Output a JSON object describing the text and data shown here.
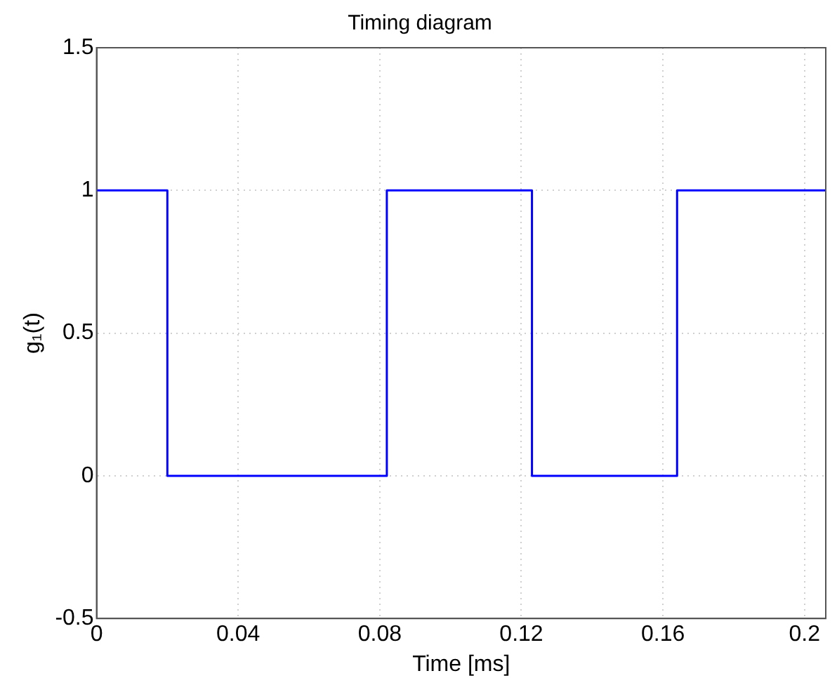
{
  "chart_data": {
    "type": "step",
    "title": "Timing diagram",
    "xlabel": "Time [ms]",
    "ylabel": "g₁(t)",
    "x": [
      0,
      0.02,
      0.082,
      0.123,
      0.164,
      0.206
    ],
    "series": [
      {
        "color": "#0000ff",
        "values": [
          1,
          0,
          1,
          0,
          1,
          1
        ]
      }
    ],
    "xlim": [
      0,
      0.206
    ],
    "xticks": [
      0,
      0.04,
      0.08,
      0.12,
      0.16,
      0.2
    ],
    "ylim": [
      -0.5,
      1.5
    ],
    "yticks": [
      -0.5,
      0,
      0.5,
      1,
      1.5
    ],
    "grid": true,
    "legend": false,
    "marker": "none",
    "line_style": "solid"
  }
}
